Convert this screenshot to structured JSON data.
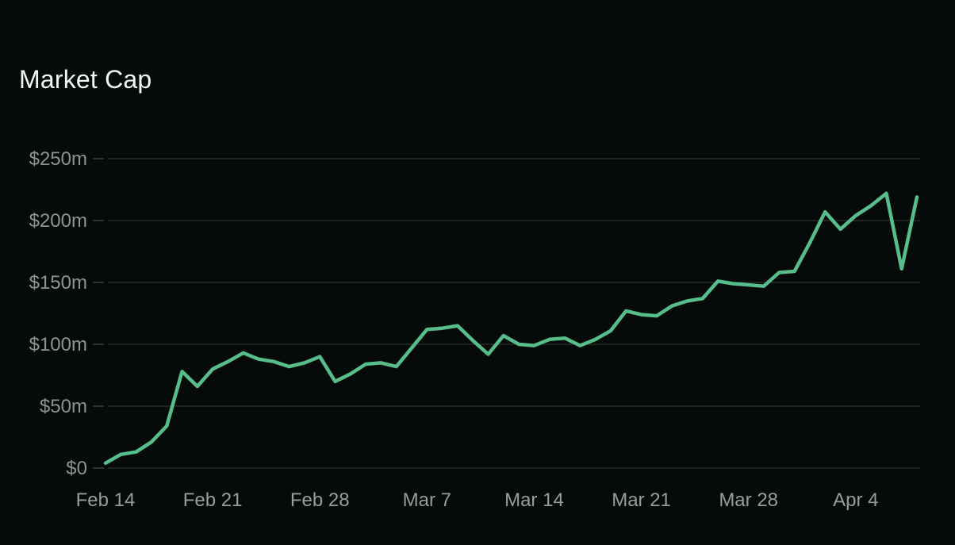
{
  "page": {
    "background_color": "#060b09"
  },
  "colors": {
    "line": "#57bd8b",
    "gridline": "#363938",
    "tick_dash": "#3d413f",
    "y_label": "#8f9492",
    "x_label": "#989d9b",
    "title": "#f5f7f6",
    "background": "#060b09"
  },
  "chart_data": {
    "type": "line",
    "title": "Market Cap",
    "unit": "$m (millions USD)",
    "legend": "none",
    "grid": "horizontal-only",
    "ylim": [
      0,
      250
    ],
    "x": [
      "Feb 14",
      "Feb 15",
      "Feb 16",
      "Feb 17",
      "Feb 18",
      "Feb 19",
      "Feb 20",
      "Feb 21",
      "Feb 22",
      "Feb 23",
      "Feb 24",
      "Feb 25",
      "Feb 26",
      "Feb 27",
      "Feb 28",
      "Mar 1",
      "Mar 2",
      "Mar 3",
      "Mar 4",
      "Mar 5",
      "Mar 6",
      "Mar 7",
      "Mar 8",
      "Mar 9",
      "Mar 10",
      "Mar 11",
      "Mar 12",
      "Mar 13",
      "Mar 14",
      "Mar 15",
      "Mar 16",
      "Mar 17",
      "Mar 18",
      "Mar 19",
      "Mar 20",
      "Mar 21",
      "Mar 22",
      "Mar 23",
      "Mar 24",
      "Mar 25",
      "Mar 26",
      "Mar 27",
      "Mar 28",
      "Mar 29",
      "Mar 30",
      "Mar 31",
      "Apr 1",
      "Apr 2",
      "Apr 3",
      "Apr 4",
      "Apr 5",
      "Apr 6",
      "Apr 7",
      "Apr 8"
    ],
    "series": [
      {
        "name": "Market Cap",
        "values": [
          4,
          11,
          13,
          21,
          34,
          78,
          66,
          80,
          86,
          93,
          88,
          86,
          82,
          85,
          90,
          70,
          76,
          84,
          85,
          82,
          97,
          112,
          113,
          115,
          103,
          92,
          107,
          100,
          99,
          104,
          105,
          99,
          104,
          111,
          127,
          124,
          123,
          131,
          135,
          137,
          151,
          149,
          148,
          147,
          158,
          159,
          182,
          207,
          193,
          204,
          212,
          222,
          161,
          219
        ]
      }
    ],
    "y_ticks": [
      {
        "label": "$250m",
        "value": 250
      },
      {
        "label": "$200m",
        "value": 200
      },
      {
        "label": "$150m",
        "value": 150
      },
      {
        "label": "$100m",
        "value": 100
      },
      {
        "label": "$50m",
        "value": 50
      },
      {
        "label": "$0",
        "value": 0
      }
    ],
    "x_ticks": [
      {
        "label": "Feb 14",
        "day": 0
      },
      {
        "label": "Feb 21",
        "day": 7
      },
      {
        "label": "Feb 28",
        "day": 14
      },
      {
        "label": "Mar 7",
        "day": 21
      },
      {
        "label": "Mar 14",
        "day": 28
      },
      {
        "label": "Mar 21",
        "day": 35
      },
      {
        "label": "Mar 28",
        "day": 42
      },
      {
        "label": "Apr 4",
        "day": 49
      }
    ]
  }
}
